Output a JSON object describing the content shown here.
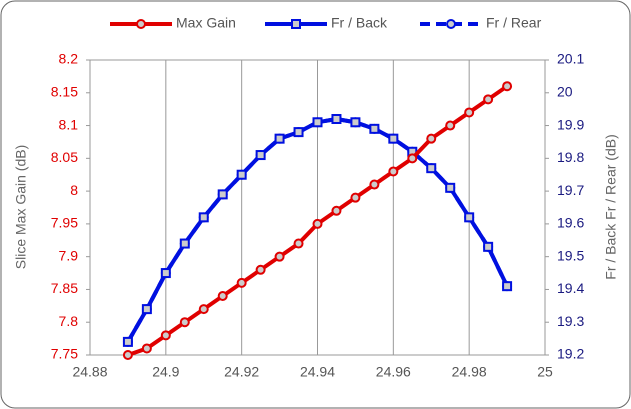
{
  "chart_data": {
    "type": "line",
    "x": [
      24.89,
      24.895,
      24.9,
      24.905,
      24.91,
      24.915,
      24.92,
      24.925,
      24.93,
      24.935,
      24.94,
      24.945,
      24.95,
      24.955,
      24.96,
      24.965,
      24.97,
      24.975,
      24.98,
      24.985,
      24.99
    ],
    "series": [
      {
        "name": "Max Gain",
        "color": "#e00000",
        "marker": "circle",
        "dash": false,
        "values": [
          7.75,
          7.76,
          7.78,
          7.8,
          7.82,
          7.84,
          7.86,
          7.88,
          7.9,
          7.92,
          7.95,
          7.97,
          7.99,
          8.01,
          8.03,
          8.05,
          8.08,
          8.1,
          8.12,
          8.14,
          8.16
        ]
      },
      {
        "name": "Fr / Back",
        "color": "#0010e0",
        "marker": "square",
        "dash": false,
        "axis": "y2",
        "values": [
          19.24,
          19.34,
          19.45,
          19.54,
          19.62,
          19.69,
          19.75,
          19.81,
          19.86,
          19.88,
          19.91,
          19.92,
          19.91,
          19.89,
          19.86,
          19.82,
          19.77,
          19.71,
          19.62,
          19.53,
          19.41
        ]
      },
      {
        "name": "Fr / Rear",
        "color": "#0010e0",
        "marker": "circle",
        "dash": true,
        "axis": "y2",
        "values": [
          19.24,
          19.34,
          19.45,
          19.54,
          19.62,
          19.69,
          19.75,
          19.81,
          19.86,
          19.88,
          19.91,
          19.92,
          19.91,
          19.89,
          19.86,
          19.82,
          19.77,
          19.71,
          19.62,
          19.53,
          19.41
        ]
      }
    ],
    "xlim": [
      24.88,
      25
    ],
    "xticks": [
      24.88,
      24.9,
      24.92,
      24.94,
      24.96,
      24.98,
      25
    ],
    "ylim": [
      7.75,
      8.2
    ],
    "yticks": [
      7.75,
      7.8,
      7.85,
      7.9,
      7.95,
      8,
      8.05,
      8.1,
      8.15,
      8.2
    ],
    "y2lim": [
      19.2,
      20.1
    ],
    "y2ticks": [
      19.2,
      19.3,
      19.4,
      19.5,
      19.6,
      19.7,
      19.8,
      19.9,
      20,
      20.1
    ],
    "ylabel": "Slice Max Gain (dB)",
    "y2label": "Fr / Back  Fr / Rear (dB)",
    "grid": "x",
    "legend": "top"
  }
}
